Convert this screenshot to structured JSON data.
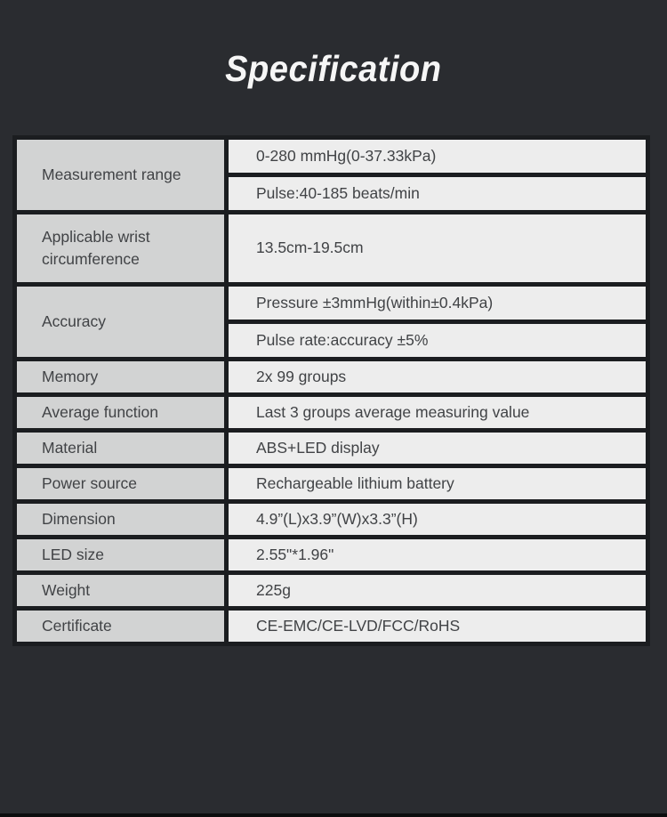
{
  "title": "Specification",
  "colors": {
    "background": "#2a2c30",
    "label_cell": "#d2d3d3",
    "value_cell": "#ededed",
    "border": "#1b1d20",
    "text": "#414346",
    "title_text": "#f6f6f6"
  },
  "table": {
    "rows": [
      {
        "label": "Measurement range",
        "values": [
          "0-280 mmHg(0-37.33kPa)",
          "Pulse:40-185 beats/min"
        ]
      },
      {
        "label": "Applicable wrist circumference",
        "values": [
          "13.5cm-19.5cm"
        ]
      },
      {
        "label": "Accuracy",
        "values": [
          "Pressure ±3mmHg(within±0.4kPa)",
          "Pulse rate:accuracy ±5%"
        ]
      },
      {
        "label": "Memory",
        "values": [
          "2x 99 groups"
        ]
      },
      {
        "label": "Average function",
        "values": [
          "Last 3 groups average measuring value"
        ]
      },
      {
        "label": "Material",
        "values": [
          "ABS+LED display"
        ]
      },
      {
        "label": "Power source",
        "values": [
          "Rechargeable lithium battery"
        ]
      },
      {
        "label": "Dimension",
        "values": [
          "4.9”(L)x3.9”(W)x3.3”(H)"
        ]
      },
      {
        "label": "LED size",
        "values": [
          "2.55\"*1.96\""
        ]
      },
      {
        "label": "Weight",
        "values": [
          "225g"
        ]
      },
      {
        "label": "Certificate",
        "values": [
          "CE-EMC/CE-LVD/FCC/RoHS"
        ]
      }
    ]
  }
}
